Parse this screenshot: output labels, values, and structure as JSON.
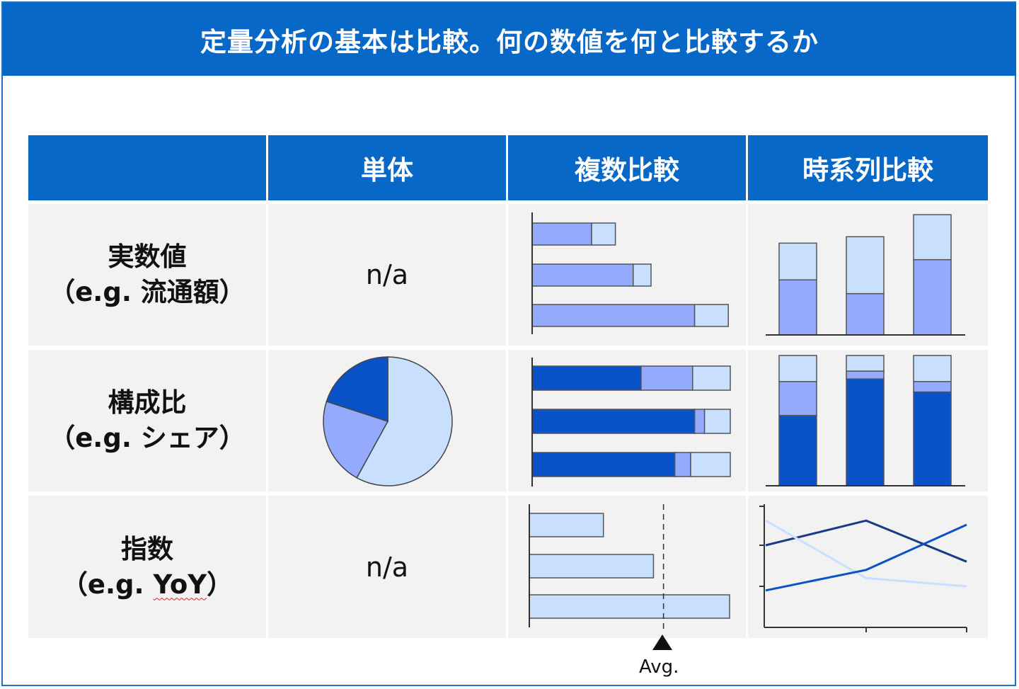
{
  "title": "定量分析の基本は比較。何の数値を何と比較するか",
  "columns": [
    "",
    "単体",
    "複数比較",
    "時系列比較"
  ],
  "rows": [
    {
      "label_main": "実数値",
      "label_sub": "（e.g. 流通額）",
      "single": "n/a"
    },
    {
      "label_main": "構成比",
      "label_sub": "（e.g. シェア）",
      "single": ""
    },
    {
      "label_main": "指数",
      "label_sub_prefix": "（e.g. ",
      "label_sub_word": "YoY",
      "label_sub_suffix": "）",
      "single": "n/a"
    }
  ],
  "avg_label": "Avg.",
  "colors": {
    "dark": "#0a52c8",
    "mid": "#94aafc",
    "light": "#c8e0fd",
    "navy": "#1a3a86",
    "header": "#0868c8"
  },
  "chart_data": [
    {
      "type": "pie",
      "slices": [
        0.58,
        0.22,
        0.2
      ],
      "colors": [
        "light",
        "mid",
        "dark"
      ]
    },
    {
      "type": "bar",
      "orientation": "horizontal",
      "stacked": true,
      "series_colors": [
        "mid",
        "light"
      ],
      "values": [
        [
          30,
          12
        ],
        [
          51,
          9
        ],
        [
          82,
          17
        ]
      ],
      "xlim": [
        0,
        100
      ]
    },
    {
      "type": "bar",
      "orientation": "vertical",
      "stacked": true,
      "series_colors": [
        "mid",
        "light"
      ],
      "values": [
        [
          60,
          40
        ],
        [
          45,
          62
        ],
        [
          82,
          49
        ]
      ],
      "ylim": [
        0,
        135
      ]
    },
    {
      "type": "bar",
      "orientation": "horizontal",
      "stacked": true,
      "series_colors": [
        "dark",
        "mid",
        "light"
      ],
      "values": [
        [
          55,
          26,
          19
        ],
        [
          82,
          5,
          13
        ],
        [
          72,
          8,
          20
        ]
      ],
      "xlim": [
        0,
        100
      ]
    },
    {
      "type": "bar",
      "orientation": "vertical",
      "stacked": true,
      "series_colors": [
        "dark",
        "mid",
        "light"
      ],
      "values": [
        [
          54,
          26,
          20
        ],
        [
          82,
          6,
          12
        ],
        [
          72,
          8,
          20
        ]
      ],
      "ylim": [
        0,
        100
      ]
    },
    {
      "type": "bar",
      "orientation": "horizontal",
      "series_colors": [
        "light"
      ],
      "values": [
        37,
        62,
        100
      ],
      "average": 67,
      "xlim": [
        0,
        100
      ]
    },
    {
      "type": "line",
      "x": [
        0,
        1,
        2
      ],
      "series": [
        {
          "color": "navy",
          "values": [
            2.0,
            2.6,
            1.6
          ]
        },
        {
          "color": "light",
          "values": [
            2.6,
            1.2,
            1.0
          ]
        },
        {
          "color": "dark",
          "values": [
            0.9,
            1.4,
            2.5
          ]
        }
      ],
      "ylim": [
        0,
        3
      ]
    }
  ]
}
